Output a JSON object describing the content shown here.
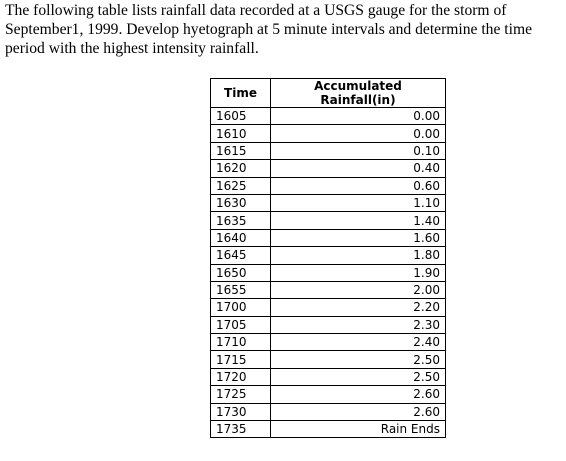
{
  "problem": {
    "lines": [
      "The following table lists rainfall data recorded at a USGS gauge for the storm of",
      "September1, 1999.  Develop hyetograph at 5 minute intervals and determine the time",
      "period with the highest intensity rainfall."
    ]
  },
  "table": {
    "headers": [
      "Time",
      "Accumulated Rainfall(in)"
    ],
    "rows": [
      [
        "1605",
        "0.00"
      ],
      [
        "1610",
        "0.00"
      ],
      [
        "1615",
        "0.10"
      ],
      [
        "1620",
        "0.40"
      ],
      [
        "1625",
        "0.60"
      ],
      [
        "1630",
        "1.10"
      ],
      [
        "1635",
        "1.40"
      ],
      [
        "1640",
        "1.60"
      ],
      [
        "1645",
        "1.80"
      ],
      [
        "1650",
        "1.90"
      ],
      [
        "1655",
        "2.00"
      ],
      [
        "1700",
        "2.20"
      ],
      [
        "1705",
        "2.30"
      ],
      [
        "1710",
        "2.40"
      ],
      [
        "1715",
        "2.50"
      ],
      [
        "1720",
        "2.50"
      ],
      [
        "1725",
        "2.60"
      ],
      [
        "1730",
        "2.60"
      ],
      [
        "1735",
        "Rain Ends"
      ]
    ]
  }
}
